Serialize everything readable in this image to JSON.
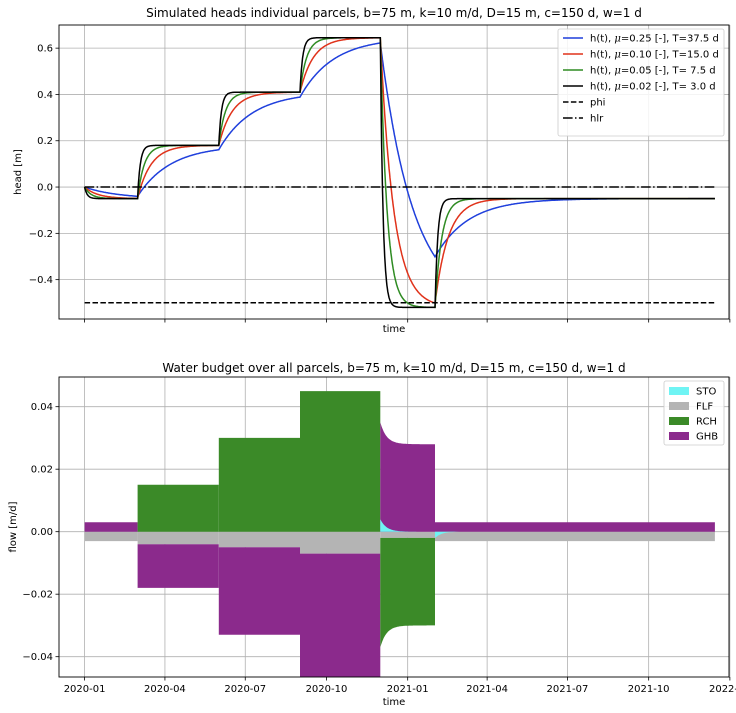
{
  "chart_data": [
    {
      "type": "line",
      "title": "Simulated heads individual parcels, b=75 m, k=10 m/d, D=15 m, c=150 d, w=1 d",
      "xlabel": "time",
      "ylabel": "head [m]",
      "ylim": [
        -0.57,
        0.7
      ],
      "xlim": [
        "2019-12-03",
        "2021-12-31"
      ],
      "yticks": [
        0.6,
        0.4,
        0.2,
        0.0,
        -0.2,
        -0.4
      ],
      "ytick_labels": [
        "0.6",
        "0.4",
        "0.2",
        "0.0",
        "−0.2",
        "−0.4"
      ],
      "grid": true,
      "legend_position": "upper right",
      "series": [
        {
          "name": "h(t), μ=0.25 [-], T=37.5 d",
          "legend_label": {
            "pre": "h(t), ",
            "greek": "μ",
            "post": "=0.25 [-], T=37.5 d"
          },
          "color": "#1f3fdc",
          "linestyle": "solid",
          "T_days": 37.5
        },
        {
          "name": "h(t), μ=0.10 [-], T=15.0 d",
          "legend_label": {
            "pre": "h(t), ",
            "greek": "μ",
            "post": "=0.10 [-], T=15.0 d"
          },
          "color": "#e0321a",
          "linestyle": "solid",
          "T_days": 15.0
        },
        {
          "name": "h(t), μ=0.05 [-], T= 7.5 d",
          "legend_label": {
            "pre": "h(t), ",
            "greek": "μ",
            "post": "=0.05 [-], T= 7.5 d"
          },
          "color": "#2e8b22",
          "linestyle": "solid",
          "T_days": 7.5
        },
        {
          "name": "h(t), μ=0.02 [-], T= 3.0 d",
          "legend_label": {
            "pre": "h(t), ",
            "greek": "μ",
            "post": "=0.02 [-], T= 3.0 d"
          },
          "color": "#000000",
          "linestyle": "solid",
          "T_days": 3.0
        },
        {
          "name": "phi",
          "legend_label": {
            "pre": "phi",
            "greek": "",
            "post": ""
          },
          "color": "#000000",
          "linestyle": "dashed",
          "x": [
            "2020-01-01",
            "2021-12-15"
          ],
          "y": [
            -0.5,
            -0.5
          ]
        },
        {
          "name": "hlr",
          "legend_label": {
            "pre": "hlr",
            "greek": "",
            "post": ""
          },
          "color": "#000000",
          "linestyle": "dashdot",
          "x": [
            "2020-01-01",
            "2021-12-15"
          ],
          "y": [
            0.0,
            0.0
          ]
        }
      ],
      "equilibrium_levels": {
        "periods": [
          "2020-01-01",
          "2020-03-01",
          "2020-06-01",
          "2020-09-01",
          "2020-12-01",
          "2021-02-01",
          "2021-12-15"
        ],
        "head_m": [
          -0.05,
          0.18,
          0.41,
          0.645,
          -0.52,
          -0.05
        ]
      }
    },
    {
      "type": "area",
      "title": "Water budget over all parcels, b=75 m, k=10 m/d, D=15 m, c=150 d, w=1 d",
      "xlabel": "time",
      "ylabel": "flow [m/d]",
      "ylim": [
        -0.0465,
        0.0495
      ],
      "xlim": [
        "2019-12-03",
        "2021-12-31"
      ],
      "yticks": [
        0.04,
        0.02,
        0.0,
        -0.02,
        -0.04
      ],
      "ytick_labels": [
        "0.04",
        "0.02",
        "0.00",
        "−0.02",
        "−0.04"
      ],
      "xticks": [
        "2020-01-01",
        "2020-04-01",
        "2020-07-01",
        "2020-10-01",
        "2021-01-01",
        "2021-04-01",
        "2021-07-01",
        "2021-10-01",
        "2022-01-01"
      ],
      "xtick_labels": [
        "2020-01",
        "2020-04",
        "2020-07",
        "2020-10",
        "2021-01",
        "2021-04",
        "2021-07",
        "2021-10",
        "2022-01"
      ],
      "grid": true,
      "legend_position": "upper right",
      "series": [
        {
          "name": "STO",
          "color": "#6ff4f4"
        },
        {
          "name": "FLF",
          "color": "#b4b4b4"
        },
        {
          "name": "RCH",
          "color": "#3b8a28"
        },
        {
          "name": "GHB",
          "color": "#8b2a8c"
        }
      ],
      "periods": [
        {
          "start": "2020-01-01",
          "end": "2020-03-01",
          "RCH": 0.0,
          "GHB": 0.003,
          "FLF": -0.003
        },
        {
          "start": "2020-03-01",
          "end": "2020-06-01",
          "RCH": 0.015,
          "GHB": -0.014,
          "FLF": -0.004
        },
        {
          "start": "2020-06-01",
          "end": "2020-09-01",
          "RCH": 0.03,
          "GHB": -0.028,
          "FLF": -0.005
        },
        {
          "start": "2020-09-01",
          "end": "2020-12-01",
          "RCH": 0.045,
          "GHB": -0.042,
          "FLF": -0.007
        },
        {
          "start": "2020-12-01",
          "end": "2021-02-01",
          "RCH": -0.03,
          "GHB": 0.028,
          "FLF": -0.002
        },
        {
          "start": "2021-02-01",
          "end": "2021-12-15",
          "RCH": 0.0,
          "GHB": 0.003,
          "FLF": -0.003
        }
      ],
      "transients": [
        {
          "date": "2020-12-01",
          "RCH_start": -0.037,
          "GHB_start": 0.035,
          "STO_start": 0.004
        },
        {
          "date": "2021-02-01",
          "STO_start": -0.002
        }
      ]
    }
  ]
}
